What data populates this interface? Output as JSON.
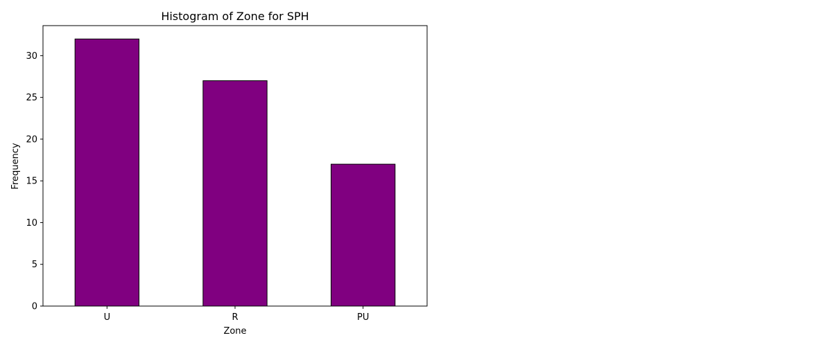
{
  "chart_data": {
    "type": "bar",
    "title": "Histogram of Zone for SPH",
    "xlabel": "Zone",
    "ylabel": "Frequency",
    "categories": [
      "U",
      "R",
      "PU"
    ],
    "values": [
      32,
      27,
      17
    ],
    "ylim": [
      0,
      33.6
    ],
    "yticks": [
      0,
      5,
      10,
      15,
      20,
      25,
      30
    ],
    "grid": false,
    "legend": "none",
    "bar_color": "#800080",
    "bar_edge_color": "#000000"
  }
}
